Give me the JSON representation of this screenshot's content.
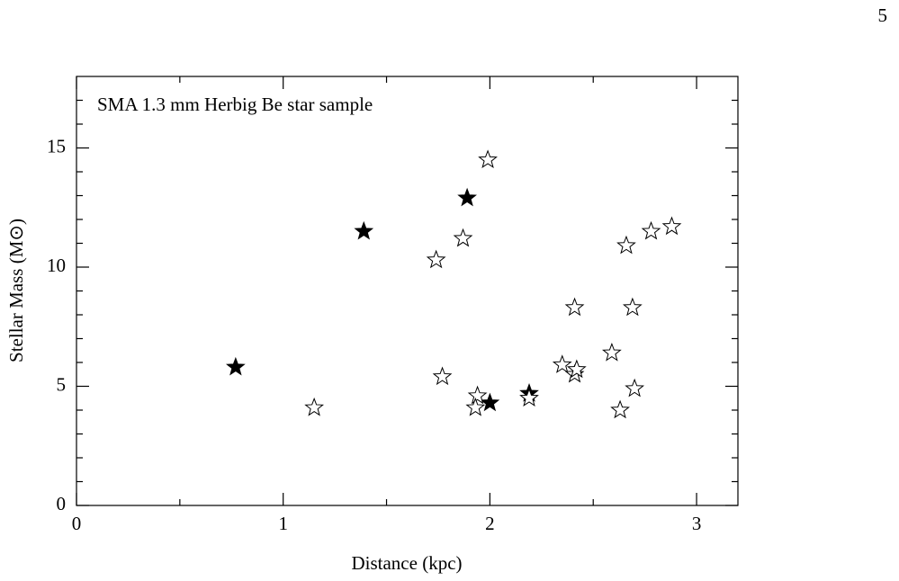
{
  "page_number": "5",
  "chart_data": {
    "type": "scatter",
    "annotation": "SMA 1.3 mm Herbig Be star sample",
    "xlabel": "Distance (kpc)",
    "ylabel": "Stellar Mass (M⊙)",
    "xlim": [
      0,
      3.2
    ],
    "ylim": [
      0,
      18
    ],
    "xticks": [
      0,
      1,
      2,
      3
    ],
    "yticks": [
      0,
      5,
      10,
      15
    ],
    "xminorticks": [
      0.5,
      1.5,
      2.5
    ],
    "yminorticks": [
      1,
      2,
      3,
      4,
      6,
      7,
      8,
      9,
      11,
      12,
      13,
      14,
      16,
      17
    ],
    "series": [
      {
        "marker": "filled",
        "color": "#000000",
        "x": [
          0.77,
          1.39,
          1.89,
          2.0,
          2.19
        ],
        "values": [
          5.8,
          11.5,
          12.9,
          4.3,
          4.7
        ]
      },
      {
        "marker": "open",
        "color": "#000000",
        "x": [
          1.15,
          1.74,
          1.77,
          1.87,
          1.94,
          1.93,
          1.99,
          2.19,
          2.35,
          2.41,
          2.41,
          2.42,
          2.59,
          2.63,
          2.66,
          2.69,
          2.7,
          2.78,
          2.88
        ],
        "values": [
          4.1,
          10.3,
          5.4,
          11.2,
          4.6,
          4.1,
          14.5,
          4.5,
          5.9,
          8.3,
          5.5,
          5.7,
          6.4,
          4.0,
          10.9,
          8.3,
          4.9,
          11.5,
          11.7
        ]
      }
    ]
  }
}
